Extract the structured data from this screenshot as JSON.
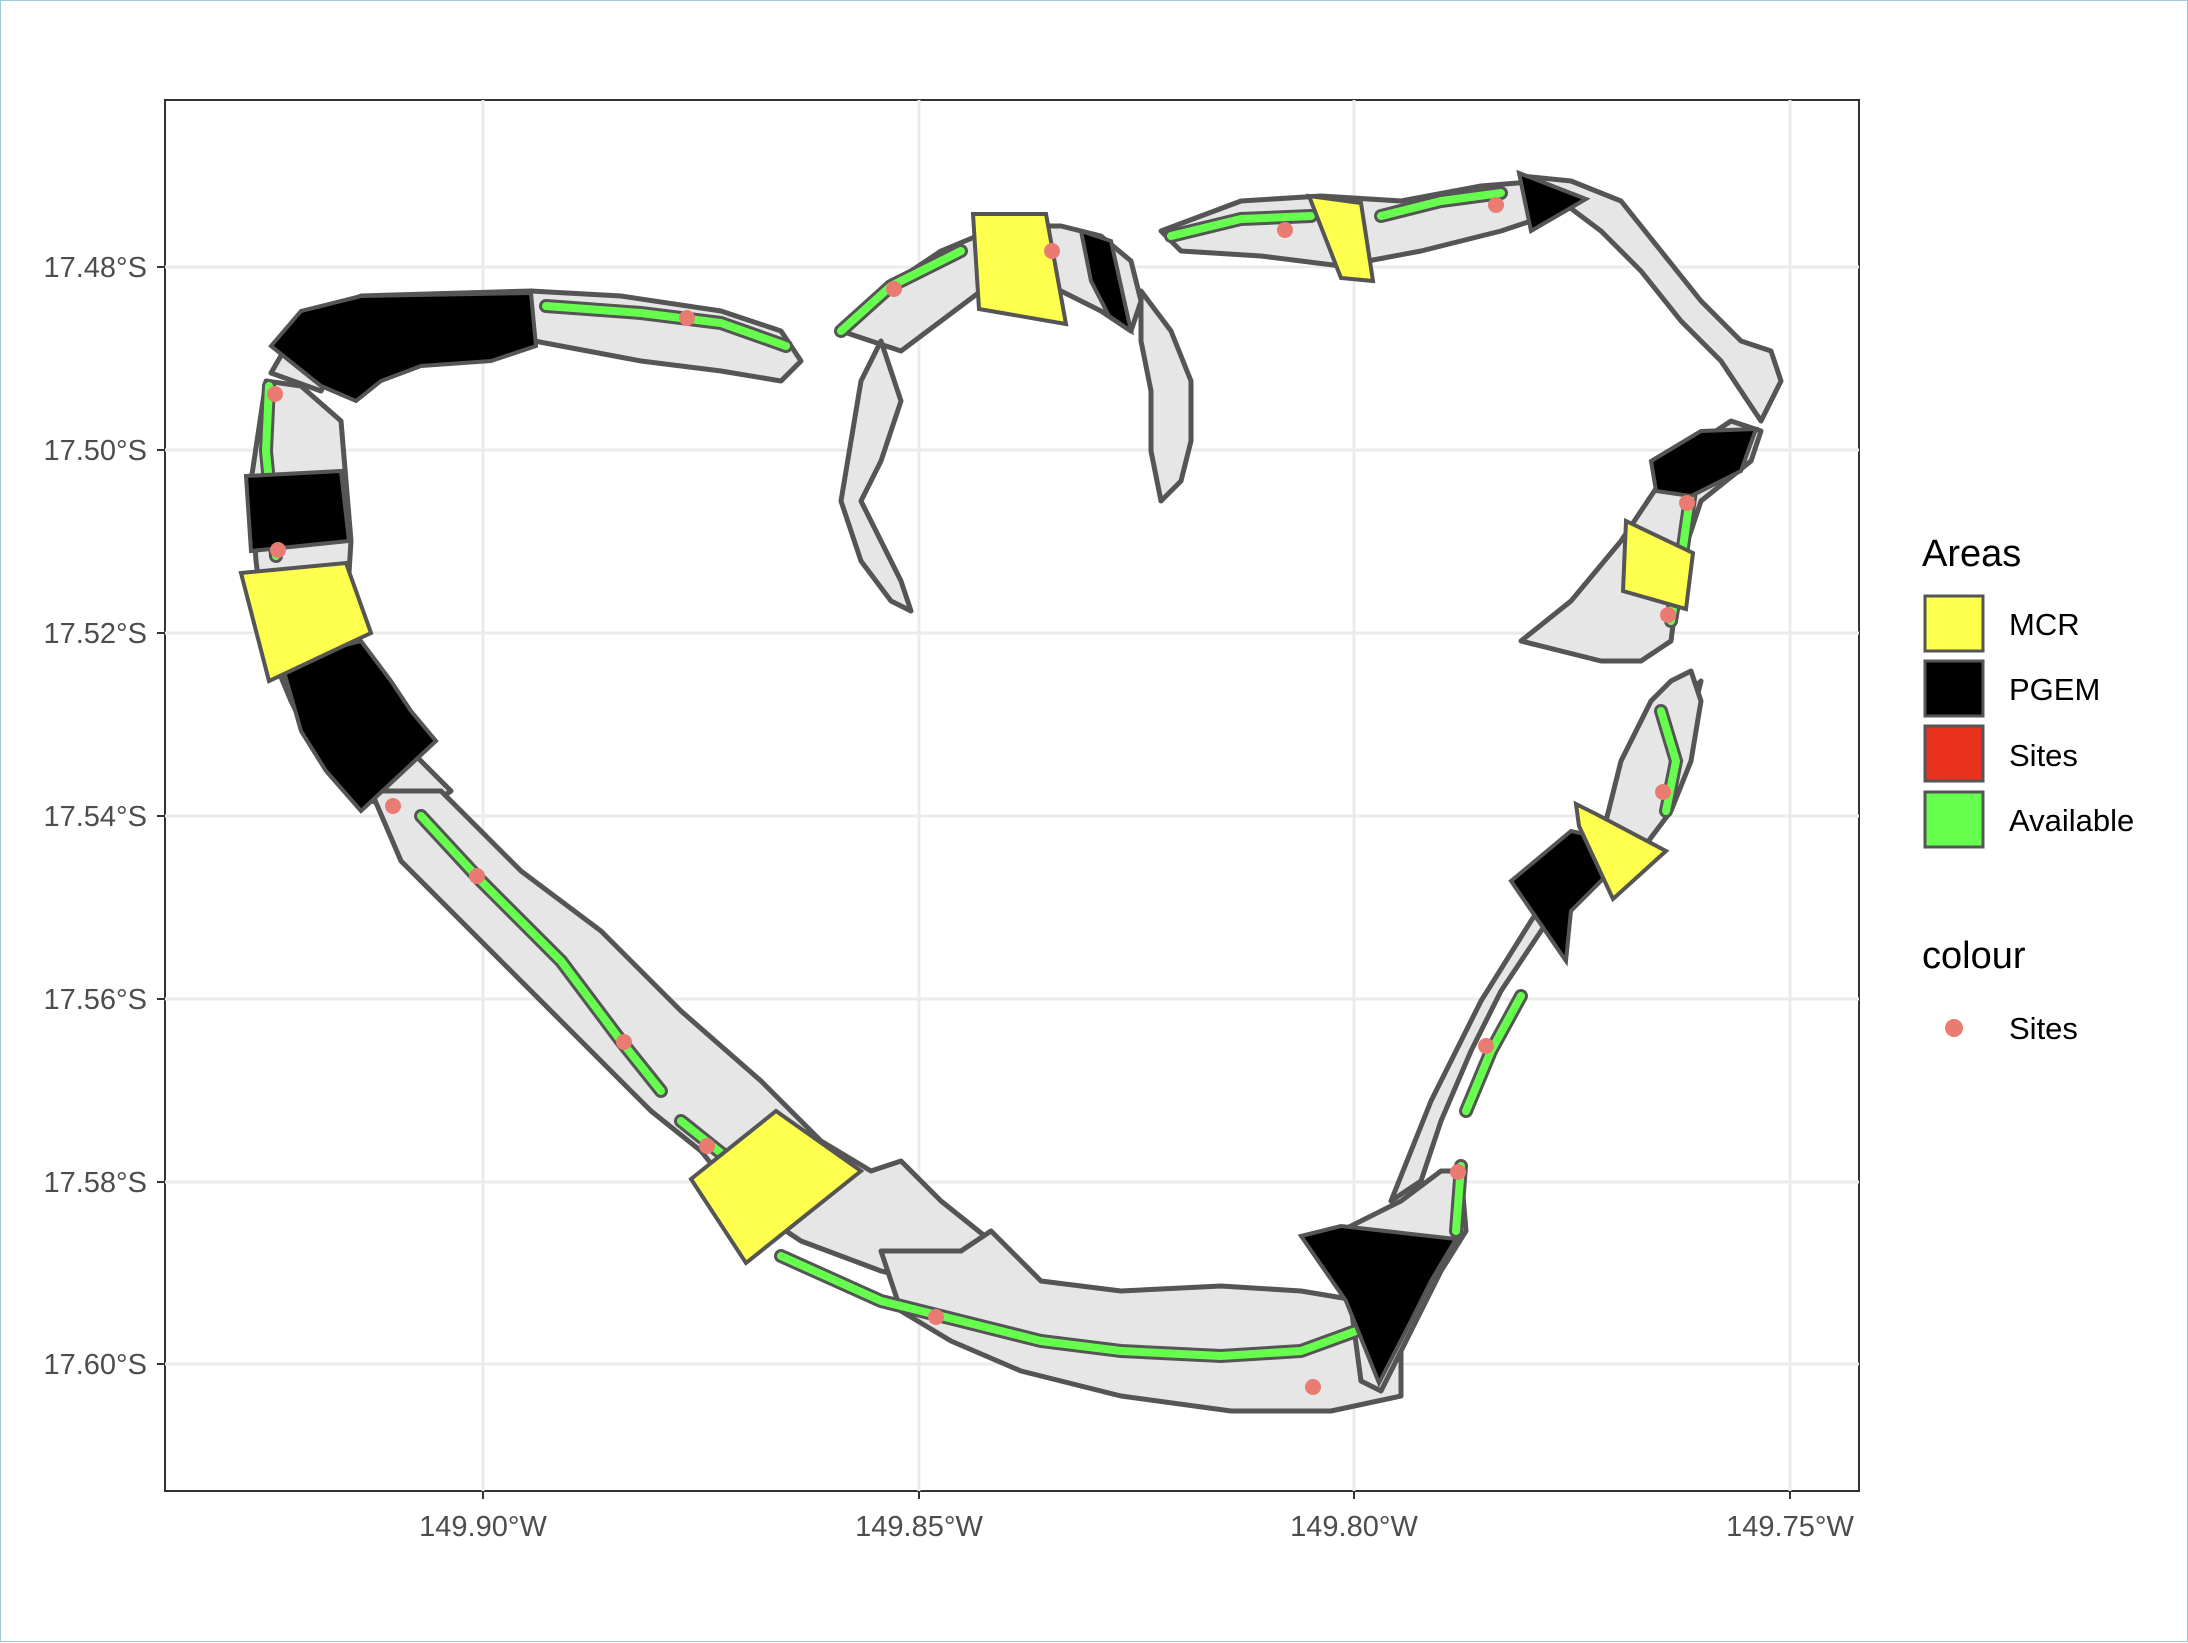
{
  "map": {
    "y_ticks": [
      "17.48°S",
      "17.50°S",
      "17.52°S",
      "17.54°S",
      "17.56°S",
      "17.58°S",
      "17.60°S"
    ],
    "x_ticks": [
      "149.90°W",
      "149.85°W",
      "149.80°W",
      "149.75°W"
    ]
  },
  "legend": {
    "areas_title": "Areas",
    "areas": [
      {
        "label": "MCR",
        "color": "#ffff4d"
      },
      {
        "label": "PGEM",
        "color": "#000000"
      },
      {
        "label": "Sites",
        "color": "#e8321e"
      },
      {
        "label": "Available",
        "color": "#66ff4d"
      }
    ],
    "colour_title": "colour",
    "colour_items": [
      {
        "label": "Sites",
        "color": "#ea7b72"
      }
    ]
  },
  "colors": {
    "reef_fill": "#e6e6e6",
    "reef_outline": "#555555",
    "available": "#66ff4d",
    "mcr": "#ffff4d",
    "pgem": "#000000",
    "site_point": "#ea7b72",
    "grid": "#ebebeb"
  }
}
